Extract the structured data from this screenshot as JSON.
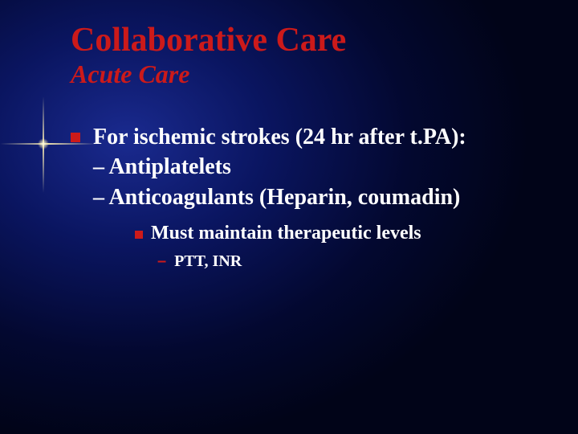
{
  "colors": {
    "accent": "#cc1a1a",
    "text": "#ffffff",
    "bg_inner": "#1a2a8f",
    "bg_outer": "#010418"
  },
  "typography": {
    "family": "Times New Roman",
    "title_pt": 42,
    "subtitle_pt": 32,
    "body_pt": 28,
    "sub_pt": 24,
    "subsub_pt": 20
  },
  "title": "Collaborative Care",
  "subtitle": "Acute Care",
  "bullets": {
    "l1": "For  ischemic strokes (24 hr after t.PA):",
    "l2a": "– Antiplatelets",
    "l2b": "– Anticoagulants (Heparin, coumadin)",
    "l3": "Must maintain therapeutic levels",
    "l4_dash": "–",
    "l4": "PTT, INR"
  }
}
